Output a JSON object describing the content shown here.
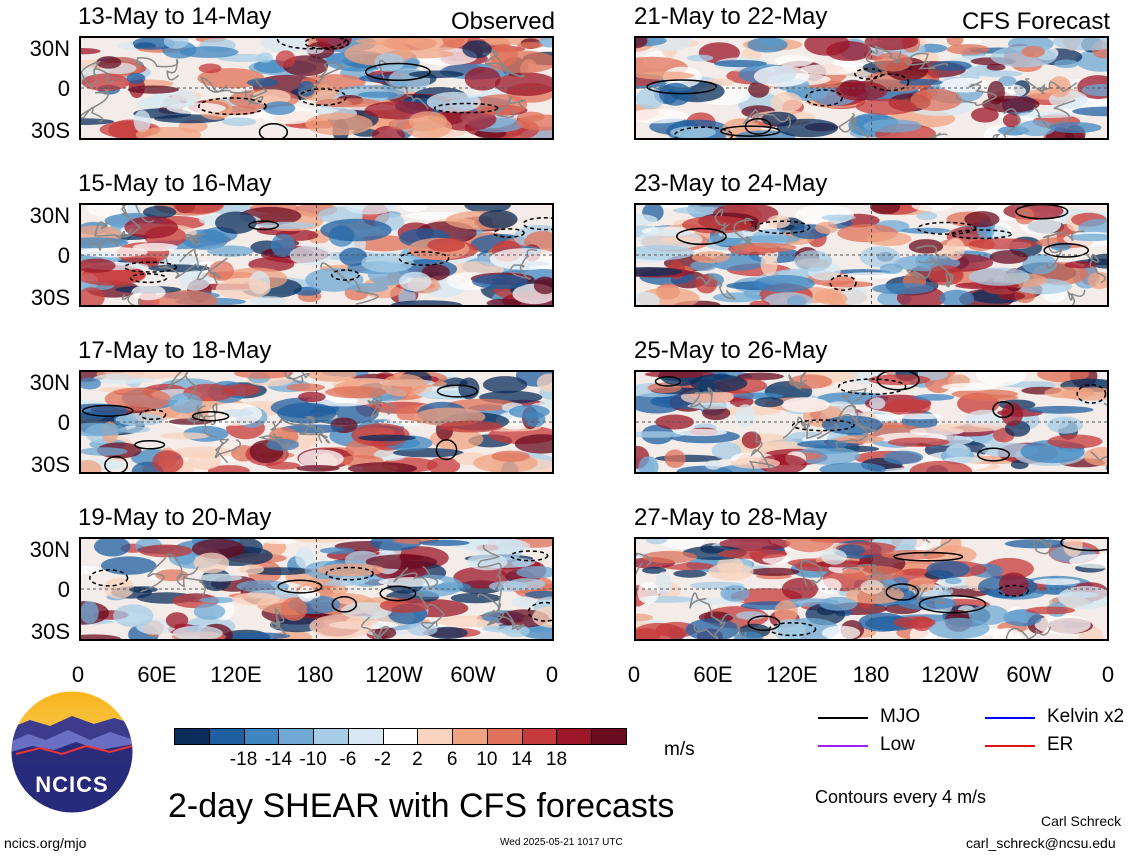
{
  "panels_left": [
    {
      "title": "13-May to 14-May",
      "label": "Observed"
    },
    {
      "title": "15-May to 16-May",
      "label": ""
    },
    {
      "title": "17-May to 18-May",
      "label": ""
    },
    {
      "title": "19-May to 20-May",
      "label": ""
    }
  ],
  "panels_right": [
    {
      "title": "21-May to 22-May",
      "label": "CFS Forecast"
    },
    {
      "title": "23-May to 24-May",
      "label": ""
    },
    {
      "title": "25-May to 26-May",
      "label": ""
    },
    {
      "title": "27-May to 28-May",
      "label": ""
    }
  ],
  "y_ticks": [
    "30N",
    "0",
    "30S"
  ],
  "x_ticks": [
    "0",
    "60E",
    "120E",
    "180",
    "120W",
    "60W",
    "0"
  ],
  "colorbar": {
    "labels": [
      "-18",
      "-14",
      "-10",
      "-6",
      "-2",
      "2",
      "6",
      "10",
      "14",
      "18"
    ],
    "colors": [
      "#0b2d5b",
      "#1f5fa0",
      "#3f86c0",
      "#6fa9d4",
      "#a8cde6",
      "#d8e9f3",
      "#ffffff",
      "#f9d3bd",
      "#f0a382",
      "#e0715a",
      "#c53a3a",
      "#9c1628",
      "#6a0b1f"
    ],
    "units": "m/s"
  },
  "title": "2-day SHEAR with CFS forecasts",
  "legend": [
    {
      "name": "MJO",
      "color": "#000000"
    },
    {
      "name": "Kelvin x2",
      "color": "#0000ff"
    },
    {
      "name": "Low",
      "color": "#a020f0"
    },
    {
      "name": "ER",
      "color": "#dd1111"
    }
  ],
  "contours_note": "Contours every 4 m/s",
  "author": "Carl Schreck",
  "author_email": "carl_schreck@ncsu.edu",
  "url": "ncics.org/mjo",
  "timestamp": "Wed 2025-05-21 1017 UTC",
  "logo_text": "NCICS"
}
